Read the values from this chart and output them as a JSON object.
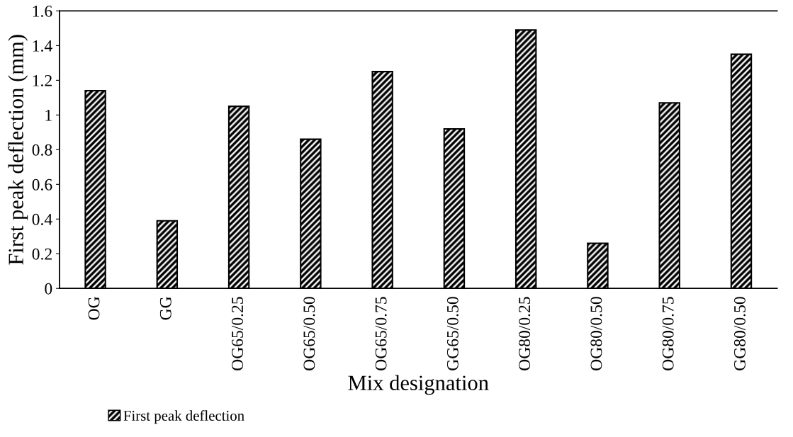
{
  "chart_data": {
    "type": "bar",
    "xlabel": "Mix designation",
    "ylabel": "First peak deflection (mm)",
    "categories": [
      "OG",
      "GG",
      "OG65/0.25",
      "OG65/0.50",
      "OG65/0.75",
      "GG65/0.50",
      "OG80/0.25",
      "OG80/0.50",
      "OG80/0.75",
      "GG80/0.50"
    ],
    "series": [
      {
        "name": "First peak deflection",
        "color": "#000000",
        "values": [
          1.14,
          0.39,
          1.05,
          0.86,
          1.25,
          0.92,
          1.49,
          0.26,
          1.07,
          1.35
        ]
      }
    ],
    "ylim": [
      0,
      1.6
    ],
    "yticks": [
      0,
      0.2,
      0.4,
      0.6,
      0.8,
      1,
      1.2,
      1.4,
      1.6
    ],
    "grid": false,
    "legend": "bottom left"
  }
}
